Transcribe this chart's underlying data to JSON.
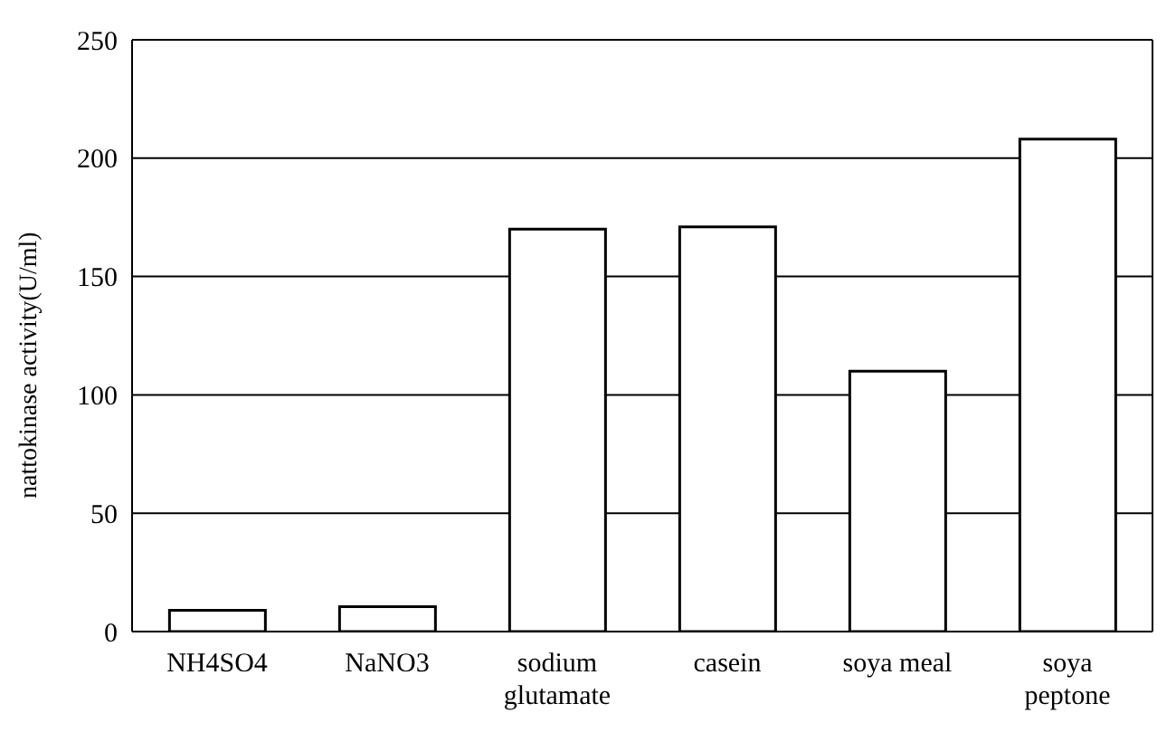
{
  "chart_data": {
    "type": "bar",
    "ylabel": "nattokinase activity(U/ml)",
    "categories": [
      "NH4SO4",
      "NaNO3",
      "sodium glutamate",
      "casein",
      "soya meal",
      "soya peptone"
    ],
    "values": [
      9,
      10.5,
      170,
      171,
      110,
      208
    ],
    "color": "#ffffff",
    "ylim": [
      0,
      250
    ],
    "yticks": [
      0,
      50,
      100,
      150,
      200,
      250
    ],
    "grid": "y"
  }
}
